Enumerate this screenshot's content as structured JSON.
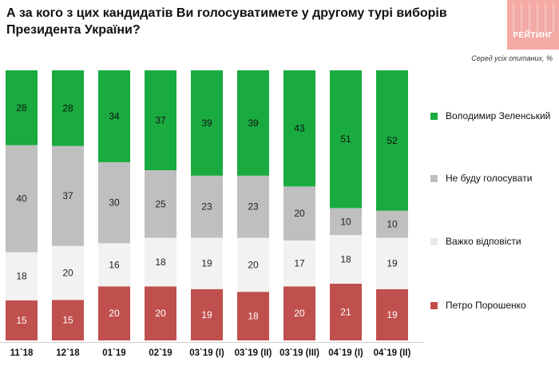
{
  "title": "А за кого з цих кандидатів Ви голосуватимете у другому турі виборів Президента України?",
  "logo": {
    "text": "РЕЙТИНГ",
    "color": "#f4aaa5"
  },
  "chart_data": {
    "type": "bar",
    "stacked": "100%",
    "title": "А за кого з цих кандидатів Ви голосуватимете у другому турі виборів Президента України?",
    "subtitle": "Серед усіх опитаних, %",
    "categories": [
      "11`18",
      "12`18",
      "01`19",
      "02`19",
      "03`19 (I)",
      "03`19 (II)",
      "03`19 (III)",
      "04`19 (I)",
      "04`19 (II)"
    ],
    "series": [
      {
        "name": "Петро Порошенко",
        "color": "#c0504d",
        "values": [
          15,
          15,
          20,
          20,
          19,
          18,
          20,
          21,
          19
        ]
      },
      {
        "name": "Важко відповісти",
        "color": "#f2f2f2",
        "values": [
          18,
          20,
          16,
          18,
          19,
          20,
          17,
          18,
          19
        ]
      },
      {
        "name": "Не буду голосувати",
        "color": "#bfbfbf",
        "values": [
          40,
          37,
          30,
          25,
          23,
          23,
          20,
          10,
          10
        ]
      },
      {
        "name": "Володимир Зеленський",
        "color": "#1aab40",
        "values": [
          28,
          28,
          34,
          37,
          39,
          39,
          43,
          51,
          52
        ]
      }
    ],
    "legend_order": [
      "Володимир Зеленський",
      "Не буду голосувати",
      "Важко відповісти",
      "Петро Порошенко"
    ],
    "legend_position": "right"
  }
}
